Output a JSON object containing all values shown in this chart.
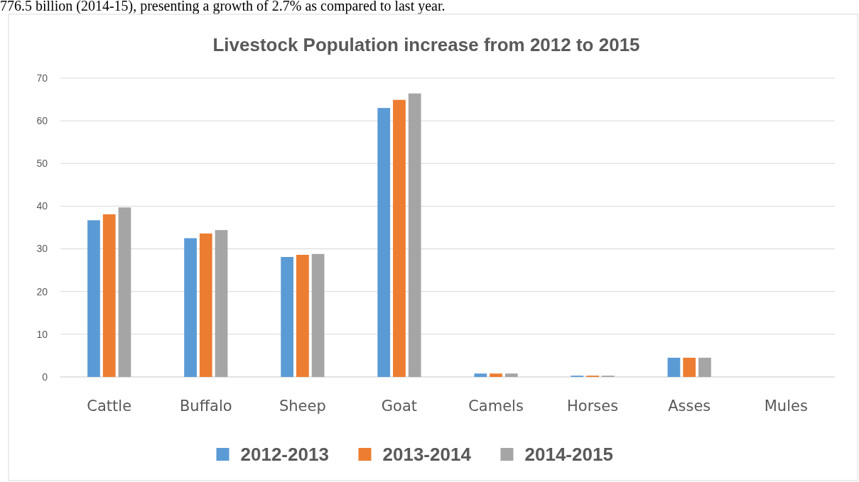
{
  "chart_data": {
    "type": "bar",
    "title": "Livestock Population increase from 2012 to 2015",
    "annotations": [
      "776.5 billion (2014-15), presenting a growth of 2.7% as compared to last year."
    ],
    "categories": [
      "Cattle",
      "Buffalo",
      "Sheep",
      "Goat",
      "Camels",
      "Horses",
      "Asses",
      "Mules"
    ],
    "series": [
      {
        "name": "2012-2013",
        "color": "#5b9bd5",
        "values": [
          36.7,
          32.5,
          28.1,
          63.0,
          0.8,
          0.3,
          4.5,
          0
        ]
      },
      {
        "name": "2013-2014",
        "color": "#ed7d31",
        "values": [
          38.1,
          33.6,
          28.6,
          64.9,
          0.8,
          0.3,
          4.5,
          0
        ]
      },
      {
        "name": "2014-2015",
        "color": "#a5a5a5",
        "values": [
          39.7,
          34.4,
          28.8,
          66.4,
          0.8,
          0.3,
          4.5,
          0
        ]
      }
    ],
    "ylim": [
      0,
      70
    ],
    "yticks": [
      0,
      10,
      20,
      30,
      40,
      50,
      60,
      70
    ],
    "grid": "y",
    "legend": "bottom"
  }
}
